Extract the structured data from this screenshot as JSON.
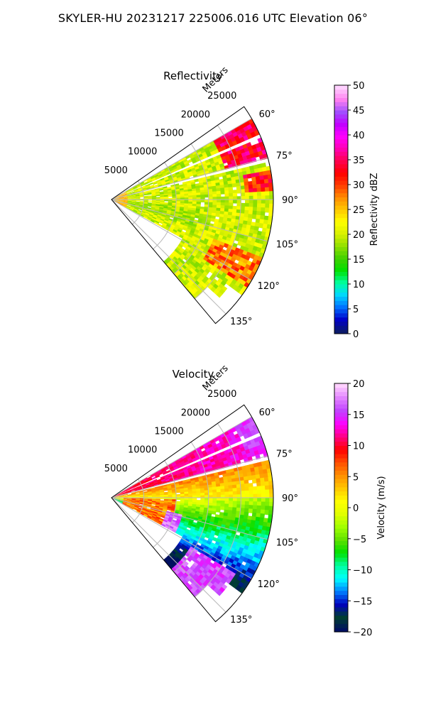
{
  "title": "SKYLER-HU  20231217  225006.016 UTC Elevation 06°",
  "chart_data": [
    {
      "type": "heatmap",
      "title": "Reflectivity",
      "radial_label": "Meters",
      "range_ticks": [
        "5000",
        "10000",
        "15000",
        "20000",
        "25000"
      ],
      "range_values": [
        5000,
        10000,
        15000,
        20000,
        25000
      ],
      "max_range": 25000,
      "azimuth_ticks": [
        "60°",
        "75°",
        "90°",
        "105°",
        "120°",
        "135°"
      ],
      "azimuth_values": [
        60,
        75,
        90,
        105,
        120,
        135
      ],
      "sector_deg": [
        55,
        140
      ],
      "grid": true,
      "colorbar": {
        "label": "Reflectivity dBZ",
        "ticks": [
          "0",
          "5",
          "10",
          "15",
          "20",
          "25",
          "30",
          "35",
          "40",
          "45",
          "50"
        ],
        "range": [
          0,
          50
        ]
      },
      "features": [
        {
          "azimuth": [
            62,
            72
          ],
          "range_m": [
            18000,
            25000
          ],
          "value_dbz": 34
        },
        {
          "azimuth": [
            60,
            140
          ],
          "range_m": [
            0,
            25000
          ],
          "value_dbz": 20
        }
      ]
    },
    {
      "type": "heatmap",
      "title": "Velocity",
      "radial_label": "Meters",
      "range_ticks": [
        "5000",
        "10000",
        "15000",
        "20000",
        "25000"
      ],
      "range_values": [
        5000,
        10000,
        15000,
        20000,
        25000
      ],
      "max_range": 25000,
      "azimuth_ticks": [
        "60°",
        "75°",
        "90°",
        "105°",
        "120°",
        "135°"
      ],
      "azimuth_values": [
        60,
        75,
        90,
        105,
        120,
        135
      ],
      "sector_deg": [
        55,
        140
      ],
      "grid": true,
      "colorbar": {
        "label": "Velocity (m/s)",
        "ticks": [
          "20",
          "15",
          "10",
          "5",
          "0",
          "−5",
          "−10",
          "−15",
          "−20"
        ],
        "range": [
          -20,
          20
        ]
      },
      "features": [
        {
          "azimuth": [
            60,
            75
          ],
          "range_m": [
            10000,
            25000
          ],
          "value_ms": 11
        },
        {
          "azimuth": [
            85,
            100
          ],
          "range_m": [
            10000,
            25000
          ],
          "value_ms": 1
        },
        {
          "azimuth": [
            100,
            120
          ],
          "range_m": [
            14000,
            25000
          ],
          "value_ms": -9
        },
        {
          "azimuth": [
            95,
            120
          ],
          "range_m": [
            1000,
            9000
          ],
          "value_ms": 6
        },
        {
          "azimuth": [
            120,
            135
          ],
          "range_m": [
            15000,
            22000
          ],
          "value_ms": 16
        }
      ]
    }
  ],
  "colors": {
    "reflectivity_scale": [
      "#0b1a6b",
      "#0000c8",
      "#006fff",
      "#00d7ff",
      "#00ffa0",
      "#00e000",
      "#40d000",
      "#90e000",
      "#d8f000",
      "#ffff00",
      "#ffc800",
      "#ff8c00",
      "#ff3c00",
      "#ff0000",
      "#ff0050",
      "#ff00b4",
      "#ff00ff",
      "#c000ff",
      "#a050ff",
      "#ff80f0",
      "#ffd0ff"
    ],
    "velocity_scale": [
      "#001060",
      "#004030",
      "#0000c0",
      "#0080ff",
      "#00ffff",
      "#00ffa0",
      "#00e000",
      "#60e000",
      "#a0ff00",
      "#e0ff00",
      "#ffff00",
      "#ffc800",
      "#ff9000",
      "#ff5000",
      "#ff0000",
      "#ff0080",
      "#ff00ff",
      "#c040ff",
      "#e080ff",
      "#ffd0ff"
    ]
  }
}
